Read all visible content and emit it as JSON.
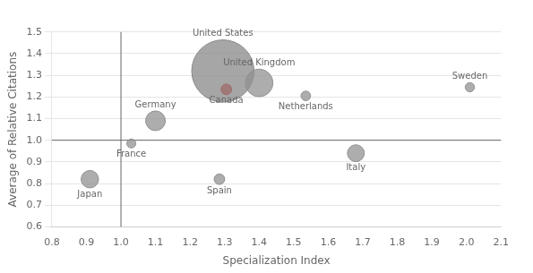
{
  "chart_data": {
    "type": "bubble",
    "xlabel": "Specialization Index",
    "ylabel": "Average of Relative Citations",
    "names": [
      "Japan",
      "France",
      "Germany",
      "Spain",
      "Canada",
      "United States",
      "United Kingdom",
      "Netherlands",
      "Italy",
      "Sweden"
    ],
    "x": [
      0.91,
      1.03,
      1.1,
      1.285,
      1.305,
      1.295,
      1.4,
      1.535,
      1.68,
      2.01
    ],
    "y": [
      0.82,
      0.985,
      1.09,
      0.82,
      1.235,
      1.32,
      1.265,
      1.205,
      0.94,
      1.245
    ],
    "sizes": [
      300,
      80,
      380,
      110,
      110,
      3800,
      750,
      90,
      280,
      85
    ],
    "colors": [
      "#919191",
      "#919191",
      "#919191",
      "#919191",
      "#dd1111",
      "#888888",
      "#919191",
      "#919191",
      "#919191",
      "#919191"
    ],
    "xlim": [
      0.8,
      2.1
    ],
    "ylim": [
      0.6,
      1.5
    ],
    "xticks": [
      0.8,
      0.9,
      {
        "value": 1.0,
        "label": "1.0"
      },
      1.1,
      1.2,
      1.3,
      1.4,
      1.5,
      1.6,
      1.7,
      1.8,
      1.9,
      {
        "value": 2.0,
        "label": "2.0"
      },
      2.1
    ],
    "yticks": [
      0.6,
      0.7,
      0.8,
      0.9,
      {
        "value": 1.0,
        "label": "1.0"
      },
      1.1,
      1.2,
      1.3,
      1.4,
      1.5
    ],
    "vline_x": 1.0,
    "hline_y": 1.0,
    "grid": "y"
  }
}
